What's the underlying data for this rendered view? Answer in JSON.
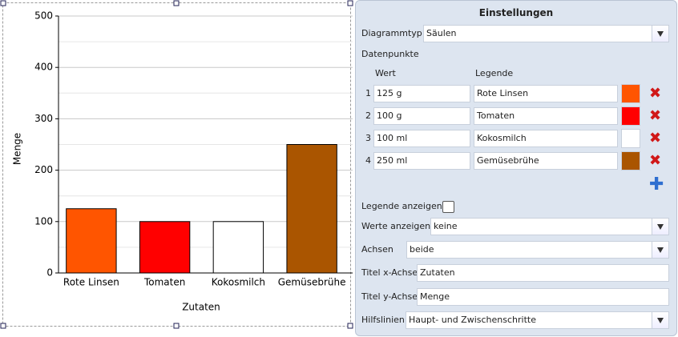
{
  "chart_data": {
    "type": "bar",
    "categories": [
      "Rote Linsen",
      "Tomaten",
      "Kokosmilch",
      "Gemüsebrühe"
    ],
    "values": [
      125,
      100,
      100,
      250
    ],
    "colors": [
      "#ff5500",
      "#ff0000",
      "#ffffff",
      "#aa5500"
    ],
    "x_label": "Zutaten",
    "y_label": "Menge",
    "ylim": [
      0,
      500
    ],
    "yticks": [
      0,
      100,
      200,
      300,
      400,
      500
    ],
    "minor_yticks": [
      50,
      150,
      250,
      350,
      450
    ],
    "grid": true
  },
  "panel": {
    "title": "Einstellungen",
    "chart_type_label": "Diagrammtyp",
    "chart_type": "Säulen",
    "datapoints_label": "Datenpunkte",
    "col_value": "Wert",
    "col_legend": "Legende",
    "rows": [
      {
        "index": 1,
        "value": "125 g",
        "legend": "Rote Linsen"
      },
      {
        "index": 2,
        "value": "100 g",
        "legend": "Tomaten"
      },
      {
        "index": 3,
        "value": "100 ml",
        "legend": "Kokosmilch"
      },
      {
        "index": 4,
        "value": "250 ml",
        "legend": "Gemüsebrühe"
      }
    ],
    "show_legend_label": "Legende anzeigen",
    "show_values_label": "Werte anzeigen",
    "show_values": "keine",
    "axes_label": "Achsen",
    "axes": "beide",
    "x_title_label": "Titel x-Achse",
    "x_title": "Zutaten",
    "y_title_label": "Titel y-Achse",
    "y_title": "Menge",
    "gridlines_label": "Hilfslinien",
    "gridlines": "Haupt- und Zwischenschritte"
  }
}
